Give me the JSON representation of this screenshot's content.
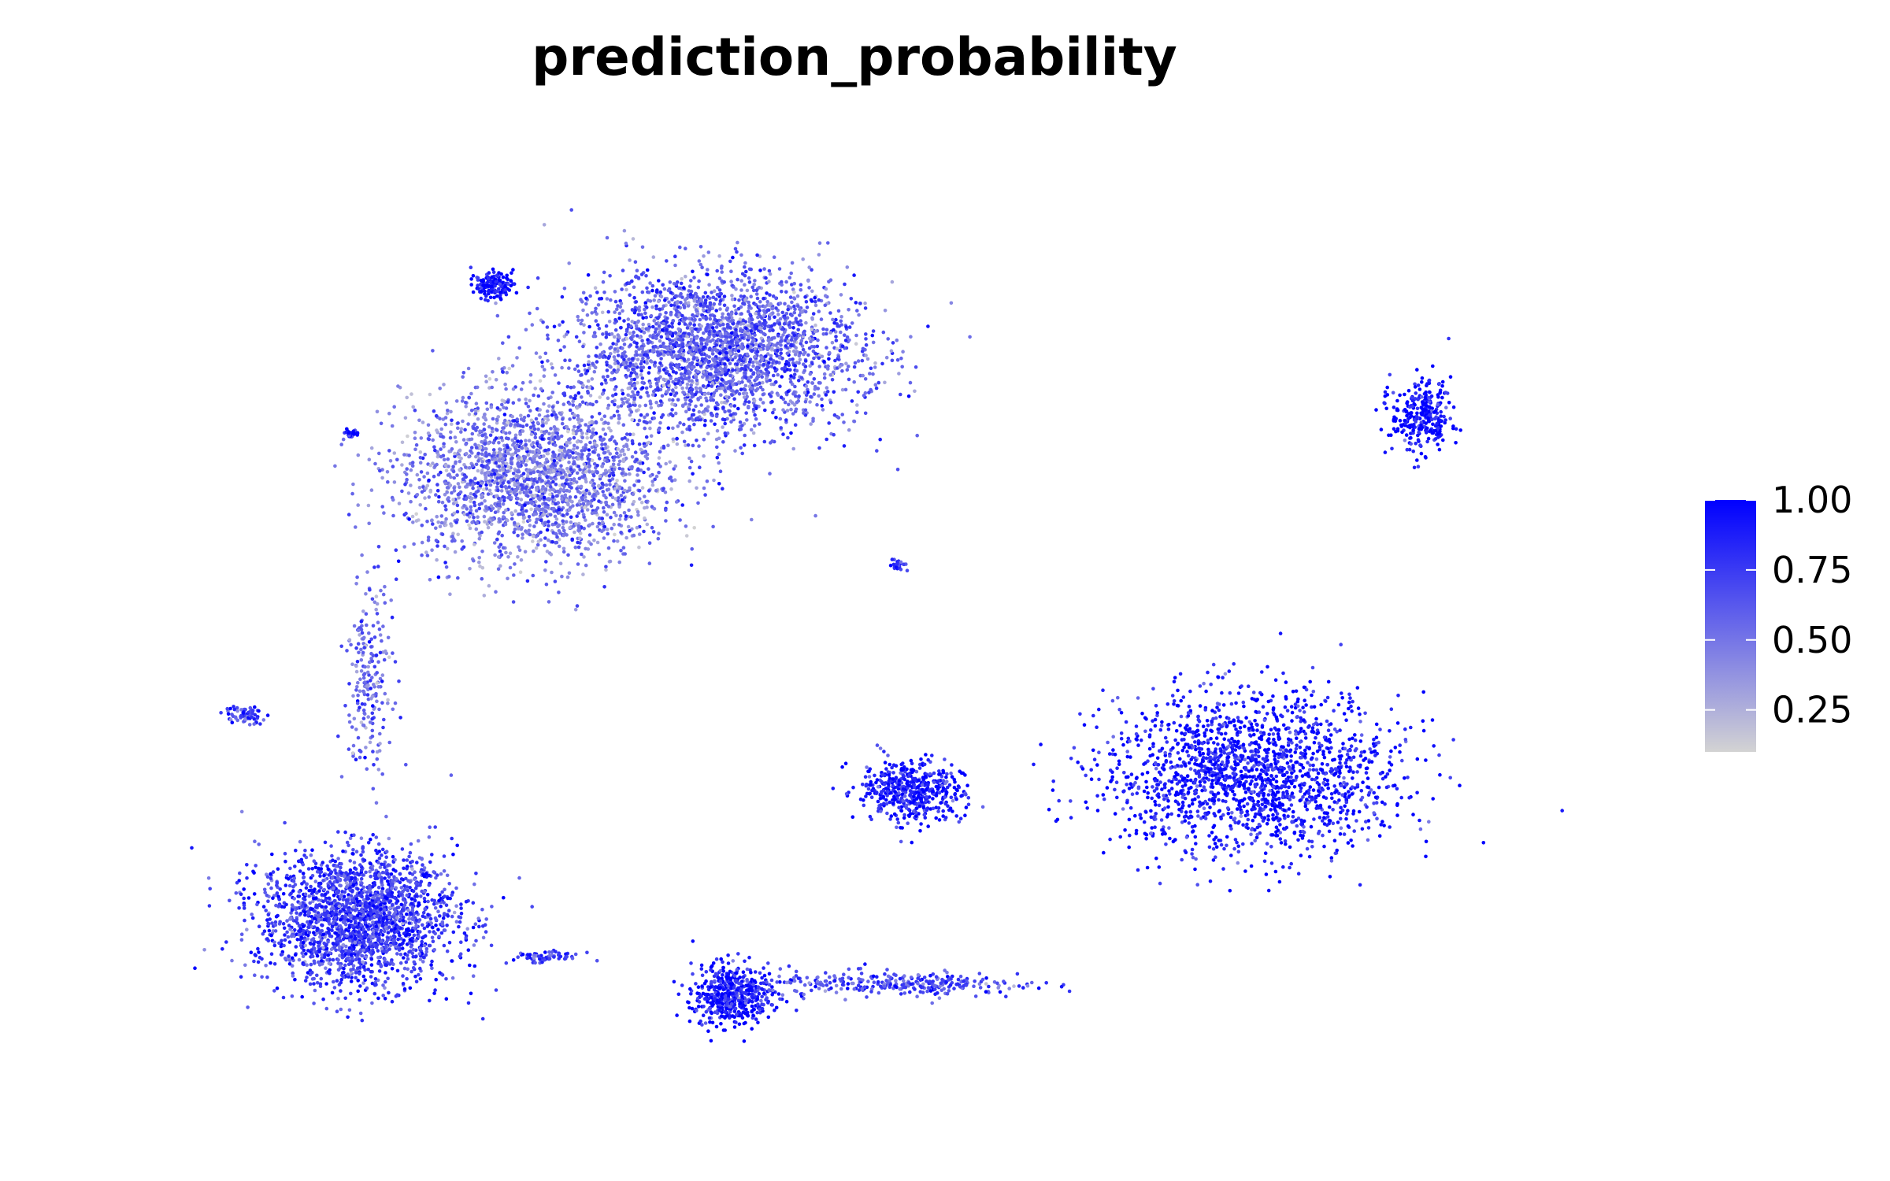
{
  "chart_data": {
    "type": "scatter",
    "title": "prediction_probability",
    "xlabel": "",
    "ylabel": "",
    "axes_visible": false,
    "grid": false,
    "point_color_variable": "prediction_probability",
    "colorbar": {
      "placement": "right",
      "range": [
        0.1,
        1.0
      ],
      "low_color": "#d3d3d3",
      "high_color": "#0000ff",
      "ticks": [
        {
          "value": 1.0,
          "label": "1.00"
        },
        {
          "value": 0.75,
          "label": "0.75"
        },
        {
          "value": 0.5,
          "label": "0.50"
        },
        {
          "value": 0.25,
          "label": "0.25"
        }
      ]
    },
    "x_range": [
      -12,
      12
    ],
    "y_range": [
      -9,
      8
    ],
    "clusters": [
      {
        "id": "main-upper",
        "center": [
          -2.5,
          4.5
        ],
        "spread": [
          2.2,
          1.3
        ],
        "n": 2600,
        "mean_prob": 0.6
      },
      {
        "id": "upper-left-lobe",
        "center": [
          -5.5,
          2.2
        ],
        "spread": [
          2.0,
          1.4
        ],
        "n": 2200,
        "mean_prob": 0.5
      },
      {
        "id": "left-stalk",
        "center": [
          -8.3,
          -1.5
        ],
        "spread": [
          0.35,
          1.6
        ],
        "n": 220,
        "mean_prob": 0.55
      },
      {
        "id": "bottom-left",
        "center": [
          -8.5,
          -5.8
        ],
        "spread": [
          1.5,
          1.1
        ],
        "n": 2100,
        "mean_prob": 0.75
      },
      {
        "id": "middle-small",
        "center": [
          0.8,
          -3.5
        ],
        "spread": [
          0.8,
          0.5
        ],
        "n": 500,
        "mean_prob": 0.9
      },
      {
        "id": "bottom-middle",
        "center": [
          -2.2,
          -7.2
        ],
        "spread": [
          0.6,
          0.5
        ],
        "n": 500,
        "mean_prob": 0.9
      },
      {
        "id": "bottom-tail",
        "center": [
          0.5,
          -7.0
        ],
        "spread": [
          2.0,
          0.2
        ],
        "n": 300,
        "mean_prob": 0.7
      },
      {
        "id": "right-large",
        "center": [
          6.6,
          -3.2
        ],
        "spread": [
          2.2,
          1.3
        ],
        "n": 1800,
        "mean_prob": 0.9
      },
      {
        "id": "top-right",
        "center": [
          9.4,
          3.3
        ],
        "spread": [
          0.45,
          0.6
        ],
        "n": 300,
        "mean_prob": 0.95
      },
      {
        "id": "top-left-blob",
        "center": [
          -6.2,
          5.7
        ],
        "spread": [
          0.3,
          0.2
        ],
        "n": 150,
        "mean_prob": 0.95
      },
      {
        "id": "tiny-left",
        "center": [
          -8.6,
          3.0
        ],
        "spread": [
          0.1,
          0.08
        ],
        "n": 30,
        "mean_prob": 0.95
      },
      {
        "id": "tiny-middle",
        "center": [
          0.6,
          0.6
        ],
        "spread": [
          0.12,
          0.1
        ],
        "n": 30,
        "mean_prob": 0.9
      },
      {
        "id": "far-left-tip",
        "center": [
          -10.4,
          -2.1
        ],
        "spread": [
          0.3,
          0.15
        ],
        "n": 70,
        "mean_prob": 0.7
      },
      {
        "id": "small-bottom-streak",
        "center": [
          -5.3,
          -6.5
        ],
        "spread": [
          0.5,
          0.1
        ],
        "n": 60,
        "mean_prob": 0.7
      }
    ]
  }
}
